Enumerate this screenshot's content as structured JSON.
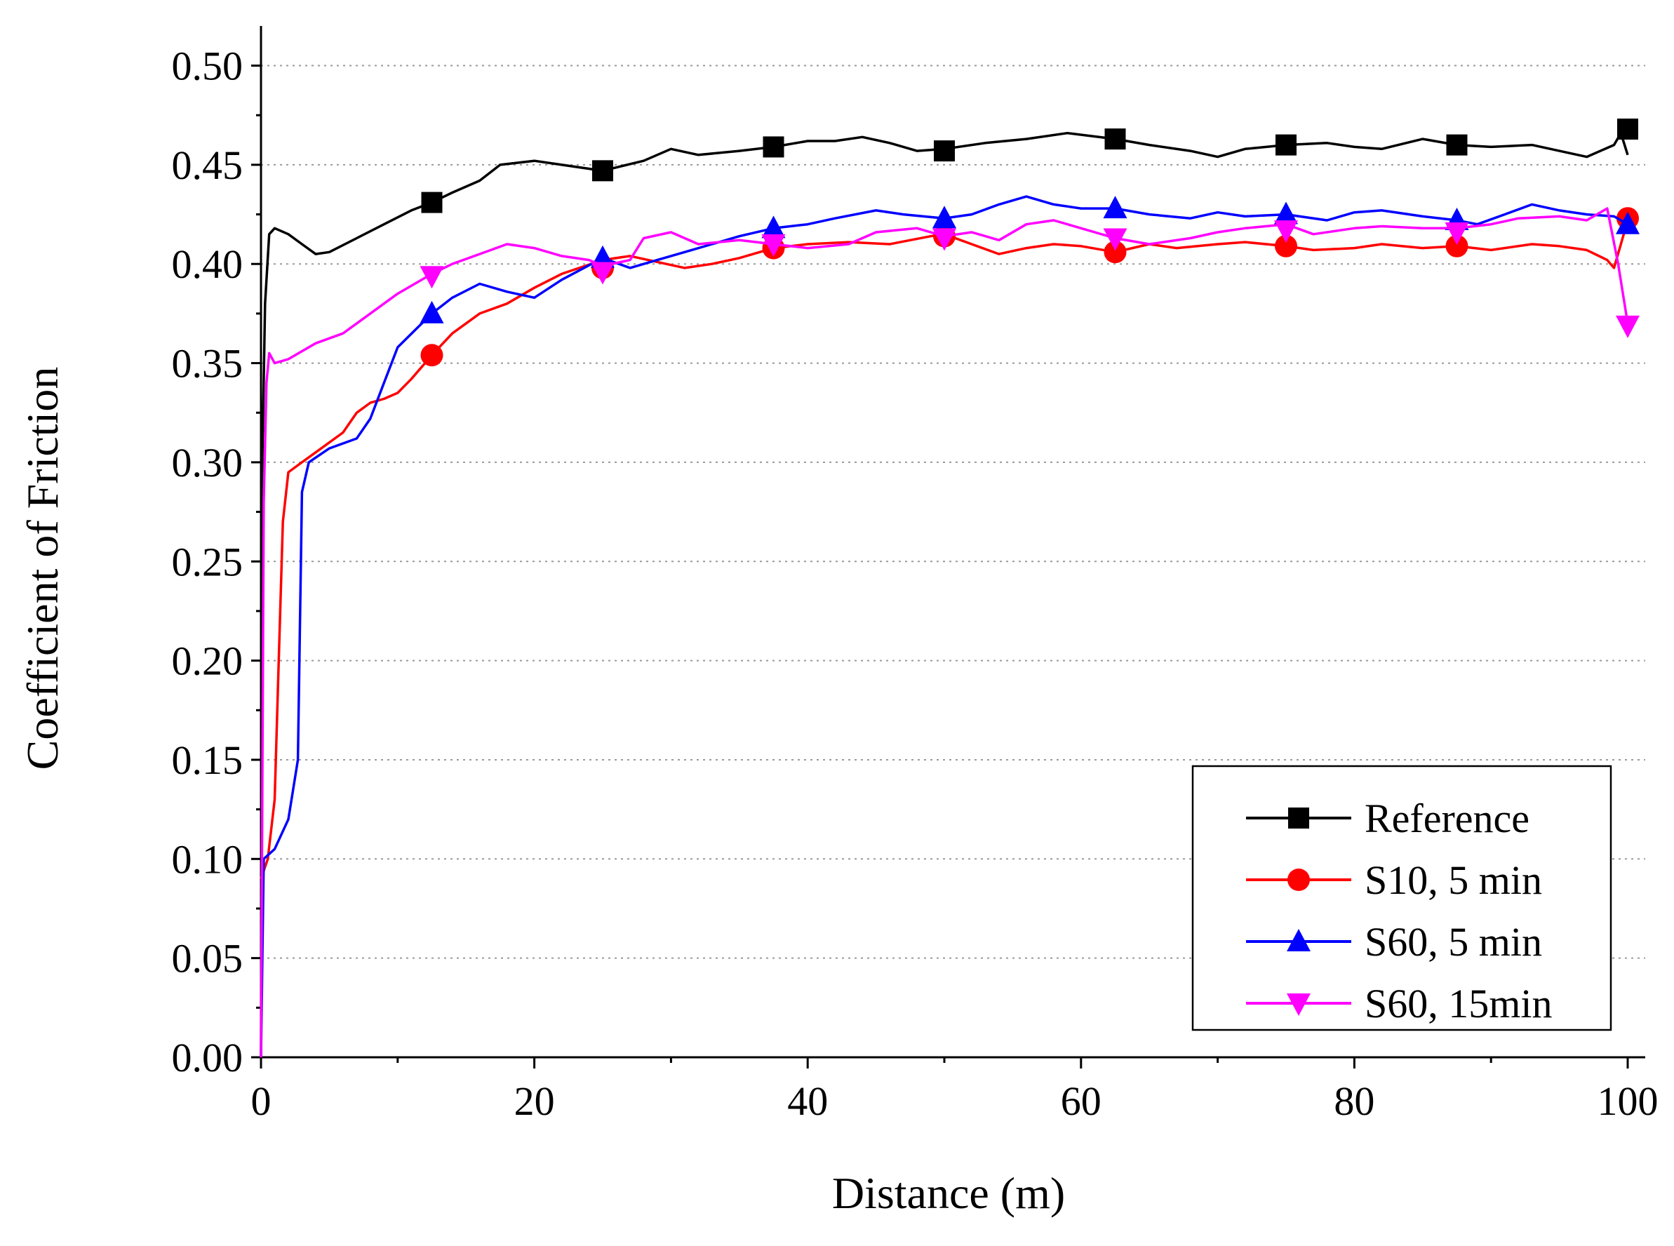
{
  "chart_data": {
    "type": "line",
    "title": "",
    "xlabel": "Distance (m)",
    "ylabel": "Coefficient of Friction",
    "xlim": [
      0,
      100
    ],
    "ylim": [
      0,
      0.52
    ],
    "x_ticks": [
      0,
      20,
      40,
      60,
      80,
      100
    ],
    "x_tick_labels": [
      "0",
      "20",
      "40",
      "60",
      "80",
      "100"
    ],
    "y_ticks": [
      0.0,
      0.05,
      0.1,
      0.15,
      0.2,
      0.25,
      0.3,
      0.35,
      0.4,
      0.45,
      0.5
    ],
    "y_tick_labels": [
      "0.00",
      "0.05",
      "0.10",
      "0.15",
      "0.20",
      "0.25",
      "0.30",
      "0.35",
      "0.40",
      "0.45",
      "0.50"
    ],
    "grid": "horizontal dotted",
    "legend_position": "bottom-right",
    "series": [
      {
        "name": "Reference",
        "color": "#000000",
        "marker": "square",
        "points": [
          [
            0,
            0.0
          ],
          [
            0.1,
            0.3
          ],
          [
            0.3,
            0.38
          ],
          [
            0.6,
            0.415
          ],
          [
            1,
            0.418
          ],
          [
            2,
            0.415
          ],
          [
            3,
            0.41
          ],
          [
            4,
            0.405
          ],
          [
            5,
            0.406
          ],
          [
            7,
            0.413
          ],
          [
            9,
            0.42
          ],
          [
            11,
            0.427
          ],
          [
            12.5,
            0.431
          ],
          [
            14,
            0.436
          ],
          [
            16,
            0.442
          ],
          [
            17.5,
            0.45
          ],
          [
            20,
            0.452
          ],
          [
            22,
            0.45
          ],
          [
            25,
            0.447
          ],
          [
            28,
            0.452
          ],
          [
            30,
            0.458
          ],
          [
            32,
            0.455
          ],
          [
            35,
            0.457
          ],
          [
            37.5,
            0.459
          ],
          [
            40,
            0.462
          ],
          [
            42,
            0.462
          ],
          [
            44,
            0.464
          ],
          [
            46,
            0.461
          ],
          [
            48,
            0.457
          ],
          [
            50,
            0.458
          ],
          [
            53,
            0.461
          ],
          [
            56,
            0.463
          ],
          [
            59,
            0.466
          ],
          [
            62.5,
            0.463
          ],
          [
            65,
            0.46
          ],
          [
            68,
            0.457
          ],
          [
            70,
            0.454
          ],
          [
            72,
            0.458
          ],
          [
            75,
            0.46
          ],
          [
            78,
            0.461
          ],
          [
            80,
            0.459
          ],
          [
            82,
            0.458
          ],
          [
            85,
            0.463
          ],
          [
            87.5,
            0.46
          ],
          [
            90,
            0.459
          ],
          [
            93,
            0.46
          ],
          [
            95,
            0.457
          ],
          [
            97,
            0.454
          ],
          [
            99,
            0.46
          ],
          [
            99.5,
            0.466
          ],
          [
            100,
            0.455
          ]
        ],
        "marker_points": [
          [
            12.5,
            0.431
          ],
          [
            25,
            0.447
          ],
          [
            37.5,
            0.459
          ],
          [
            50,
            0.457
          ],
          [
            62.5,
            0.463
          ],
          [
            75,
            0.46
          ],
          [
            87.5,
            0.46
          ],
          [
            100,
            0.468
          ]
        ]
      },
      {
        "name": "S10, 5 min",
        "color": "#ff0000",
        "marker": "circle",
        "points": [
          [
            0,
            0.09
          ],
          [
            0.5,
            0.1
          ],
          [
            1,
            0.13
          ],
          [
            1.3,
            0.2
          ],
          [
            1.6,
            0.27
          ],
          [
            2,
            0.295
          ],
          [
            3,
            0.3
          ],
          [
            4,
            0.305
          ],
          [
            5,
            0.31
          ],
          [
            6,
            0.315
          ],
          [
            7,
            0.325
          ],
          [
            8,
            0.33
          ],
          [
            9,
            0.332
          ],
          [
            10,
            0.335
          ],
          [
            11,
            0.342
          ],
          [
            12.5,
            0.354
          ],
          [
            14,
            0.365
          ],
          [
            16,
            0.375
          ],
          [
            18,
            0.38
          ],
          [
            20,
            0.388
          ],
          [
            22,
            0.395
          ],
          [
            25,
            0.402
          ],
          [
            27,
            0.404
          ],
          [
            29,
            0.401
          ],
          [
            31,
            0.398
          ],
          [
            33,
            0.4
          ],
          [
            35,
            0.403
          ],
          [
            37.5,
            0.408
          ],
          [
            40,
            0.41
          ],
          [
            43,
            0.411
          ],
          [
            46,
            0.41
          ],
          [
            49,
            0.414
          ],
          [
            50,
            0.415
          ],
          [
            52,
            0.41
          ],
          [
            54,
            0.405
          ],
          [
            56,
            0.408
          ],
          [
            58,
            0.41
          ],
          [
            60,
            0.409
          ],
          [
            62.5,
            0.406
          ],
          [
            65,
            0.41
          ],
          [
            67,
            0.408
          ],
          [
            70,
            0.41
          ],
          [
            72,
            0.411
          ],
          [
            75,
            0.409
          ],
          [
            77,
            0.407
          ],
          [
            80,
            0.408
          ],
          [
            82,
            0.41
          ],
          [
            85,
            0.408
          ],
          [
            87.5,
            0.409
          ],
          [
            90,
            0.407
          ],
          [
            93,
            0.41
          ],
          [
            95,
            0.409
          ],
          [
            97,
            0.407
          ],
          [
            98.5,
            0.402
          ],
          [
            99,
            0.398
          ],
          [
            99.5,
            0.41
          ],
          [
            100,
            0.422
          ]
        ],
        "marker_points": [
          [
            12.5,
            0.354
          ],
          [
            25,
            0.398
          ],
          [
            37.5,
            0.408
          ],
          [
            50,
            0.414
          ],
          [
            62.5,
            0.406
          ],
          [
            75,
            0.409
          ],
          [
            87.5,
            0.409
          ],
          [
            100,
            0.423
          ]
        ]
      },
      {
        "name": "S60, 5 min",
        "color": "#0000ff",
        "marker": "triangle-up",
        "points": [
          [
            0,
            0.0
          ],
          [
            0.2,
            0.1
          ],
          [
            1,
            0.105
          ],
          [
            2,
            0.12
          ],
          [
            2.7,
            0.15
          ],
          [
            3,
            0.285
          ],
          [
            3.5,
            0.3
          ],
          [
            5,
            0.307
          ],
          [
            7,
            0.312
          ],
          [
            8,
            0.322
          ],
          [
            9,
            0.34
          ],
          [
            10,
            0.358
          ],
          [
            12.5,
            0.375
          ],
          [
            14,
            0.383
          ],
          [
            16,
            0.39
          ],
          [
            18,
            0.386
          ],
          [
            20,
            0.383
          ],
          [
            22,
            0.392
          ],
          [
            25,
            0.403
          ],
          [
            27,
            0.398
          ],
          [
            29,
            0.402
          ],
          [
            31,
            0.406
          ],
          [
            33,
            0.41
          ],
          [
            35,
            0.414
          ],
          [
            37.5,
            0.418
          ],
          [
            40,
            0.42
          ],
          [
            42,
            0.423
          ],
          [
            45,
            0.427
          ],
          [
            47,
            0.425
          ],
          [
            50,
            0.423
          ],
          [
            52,
            0.425
          ],
          [
            54,
            0.43
          ],
          [
            56,
            0.434
          ],
          [
            58,
            0.43
          ],
          [
            60,
            0.428
          ],
          [
            62.5,
            0.428
          ],
          [
            65,
            0.425
          ],
          [
            68,
            0.423
          ],
          [
            70,
            0.426
          ],
          [
            72,
            0.424
          ],
          [
            75,
            0.425
          ],
          [
            78,
            0.422
          ],
          [
            80,
            0.426
          ],
          [
            82,
            0.427
          ],
          [
            85,
            0.424
          ],
          [
            87.5,
            0.422
          ],
          [
            89,
            0.42
          ],
          [
            91,
            0.425
          ],
          [
            93,
            0.43
          ],
          [
            95,
            0.427
          ],
          [
            97,
            0.425
          ],
          [
            99,
            0.424
          ],
          [
            100,
            0.42
          ]
        ],
        "marker_points": [
          [
            12.5,
            0.375
          ],
          [
            25,
            0.403
          ],
          [
            37.5,
            0.418
          ],
          [
            50,
            0.423
          ],
          [
            62.5,
            0.428
          ],
          [
            75,
            0.425
          ],
          [
            87.5,
            0.422
          ],
          [
            100,
            0.42
          ]
        ]
      },
      {
        "name": "S60, 15min",
        "color": "#ff00ff",
        "marker": "triangle-down",
        "points": [
          [
            0,
            0.0
          ],
          [
            0.2,
            0.28
          ],
          [
            0.4,
            0.34
          ],
          [
            0.6,
            0.355
          ],
          [
            1,
            0.35
          ],
          [
            2,
            0.352
          ],
          [
            4,
            0.36
          ],
          [
            6,
            0.365
          ],
          [
            8,
            0.375
          ],
          [
            10,
            0.385
          ],
          [
            12.5,
            0.395
          ],
          [
            14,
            0.4
          ],
          [
            16,
            0.405
          ],
          [
            18,
            0.41
          ],
          [
            20,
            0.408
          ],
          [
            22,
            0.404
          ],
          [
            24,
            0.402
          ],
          [
            25,
            0.399
          ],
          [
            27,
            0.402
          ],
          [
            28,
            0.413
          ],
          [
            30,
            0.416
          ],
          [
            32,
            0.41
          ],
          [
            35,
            0.412
          ],
          [
            37.5,
            0.41
          ],
          [
            40,
            0.408
          ],
          [
            43,
            0.41
          ],
          [
            45,
            0.416
          ],
          [
            48,
            0.418
          ],
          [
            50,
            0.414
          ],
          [
            52,
            0.416
          ],
          [
            54,
            0.412
          ],
          [
            56,
            0.42
          ],
          [
            58,
            0.422
          ],
          [
            60,
            0.418
          ],
          [
            62.5,
            0.413
          ],
          [
            65,
            0.41
          ],
          [
            68,
            0.413
          ],
          [
            70,
            0.416
          ],
          [
            72,
            0.418
          ],
          [
            75,
            0.42
          ],
          [
            77,
            0.415
          ],
          [
            80,
            0.418
          ],
          [
            82,
            0.419
          ],
          [
            85,
            0.418
          ],
          [
            87.5,
            0.418
          ],
          [
            90,
            0.42
          ],
          [
            92,
            0.423
          ],
          [
            95,
            0.424
          ],
          [
            97,
            0.422
          ],
          [
            98.5,
            0.428
          ],
          [
            99.3,
            0.4
          ],
          [
            100,
            0.37
          ]
        ],
        "marker_points": [
          [
            12.5,
            0.394
          ],
          [
            25,
            0.396
          ],
          [
            37.5,
            0.41
          ],
          [
            50,
            0.413
          ],
          [
            62.5,
            0.413
          ],
          [
            75,
            0.417
          ],
          [
            87.5,
            0.416
          ],
          [
            100,
            0.369
          ]
        ]
      }
    ]
  }
}
